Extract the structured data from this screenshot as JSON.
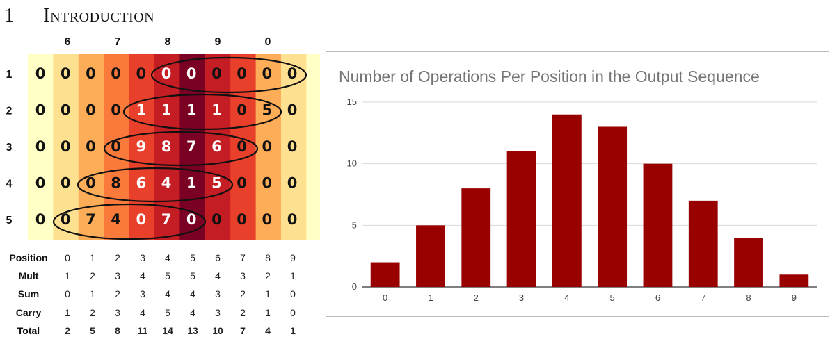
{
  "section": {
    "number": "1",
    "title": "Introduction"
  },
  "heatmap": {
    "column_digits": [
      "6",
      "7",
      "8",
      "9",
      "0"
    ],
    "row_labels": [
      "1",
      "2",
      "3",
      "4",
      "5"
    ],
    "cells": [
      [
        "0",
        "0",
        "0",
        "0",
        "0",
        "0",
        "0",
        "0",
        "0",
        "0",
        "0"
      ],
      [
        "0",
        "0",
        "0",
        "0",
        "1",
        "1",
        "1",
        "1",
        "0",
        "5",
        "0"
      ],
      [
        "0",
        "0",
        "0",
        "0",
        "9",
        "8",
        "7",
        "6",
        "0",
        "0",
        "0"
      ],
      [
        "0",
        "0",
        "0",
        "8",
        "6",
        "4",
        "1",
        "5",
        "0",
        "0",
        "0"
      ],
      [
        "0",
        "0",
        "7",
        "4",
        "0",
        "7",
        "0",
        "0",
        "0",
        "0",
        "0"
      ]
    ],
    "column_colors": [
      "#ffffc6",
      "#fde191",
      "#fdac57",
      "#f97a3b",
      "#e8402b",
      "#c51d24",
      "#7b0124",
      "#c51d24",
      "#e8402b",
      "#fdac57",
      "#fde191",
      "#ffffc6"
    ],
    "ellipse_color": "#111111"
  },
  "table": {
    "rows": [
      {
        "label": "Position",
        "values": [
          "0",
          "1",
          "2",
          "3",
          "4",
          "5",
          "6",
          "7",
          "8",
          "9"
        ],
        "bold": false
      },
      {
        "label": "Mult",
        "values": [
          "1",
          "2",
          "3",
          "4",
          "5",
          "5",
          "4",
          "3",
          "2",
          "1"
        ],
        "bold": false
      },
      {
        "label": "Sum",
        "values": [
          "0",
          "1",
          "2",
          "3",
          "4",
          "4",
          "3",
          "2",
          "1",
          "0"
        ],
        "bold": false
      },
      {
        "label": "Carry",
        "values": [
          "1",
          "2",
          "3",
          "4",
          "5",
          "4",
          "3",
          "2",
          "1",
          "0"
        ],
        "bold": false
      },
      {
        "label": "Total",
        "values": [
          "2",
          "5",
          "8",
          "11",
          "14",
          "13",
          "10",
          "7",
          "4",
          "1"
        ],
        "bold": true
      }
    ]
  },
  "chart_data": {
    "type": "bar",
    "title": "Number of Operations Per Position in the Output Sequence",
    "categories": [
      "0",
      "1",
      "2",
      "3",
      "4",
      "5",
      "6",
      "7",
      "8",
      "9"
    ],
    "values": [
      2,
      5,
      8,
      11,
      14,
      13,
      10,
      7,
      4,
      1
    ],
    "ylim": [
      0,
      15
    ],
    "yticks": [
      0,
      5,
      10,
      15
    ],
    "grid": true,
    "bar_color": "#990000"
  }
}
